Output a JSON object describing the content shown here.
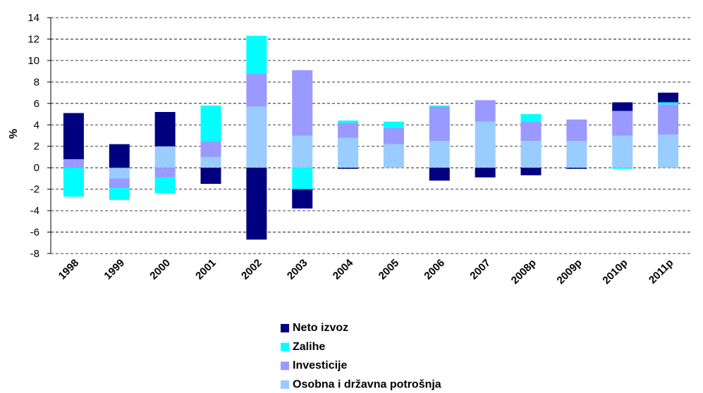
{
  "chart_data": {
    "type": "stacked_bar",
    "y_label": "%",
    "categories": [
      "1998",
      "1999",
      "2000",
      "2001",
      "2002",
      "2003",
      "2004",
      "2005",
      "2006",
      "2007",
      "2008p",
      "2009p",
      "2010p",
      "2011p"
    ],
    "series": [
      {
        "name": "Neto izvoz",
        "color": "#000080",
        "values": [
          4.3,
          2.2,
          3.2,
          -1.5,
          -6.7,
          -1.8,
          -0.1,
          0,
          -1.2,
          -0.9,
          -0.7,
          -0.1,
          0.8,
          0.9
        ]
      },
      {
        "name": "Zalihe",
        "color": "#00ffff",
        "values": [
          -2.7,
          -1.1,
          -1.5,
          3.3,
          3.5,
          -2.0,
          0.2,
          0.6,
          0.1,
          0,
          0.7,
          0,
          -0.1,
          0.2
        ]
      },
      {
        "name": "Investicije",
        "color": "#9999ff",
        "values": [
          0.8,
          -0.9,
          -0.9,
          1.5,
          3.1,
          6.1,
          1.4,
          1.5,
          3.2,
          2.0,
          1.8,
          2.0,
          2.3,
          2.8
        ]
      },
      {
        "name": "Osobna i državna potrošnja",
        "color": "#99ccff",
        "values": [
          0,
          -1.0,
          2.0,
          1.0,
          5.7,
          3.0,
          2.8,
          2.2,
          2.5,
          4.3,
          2.5,
          2.5,
          3.0,
          3.1
        ]
      }
    ],
    "ylim": [
      -8,
      14
    ],
    "yticks": [
      -8,
      -6,
      -4,
      -2,
      0,
      2,
      4,
      6,
      8,
      10,
      12,
      14
    ],
    "grid": true
  }
}
